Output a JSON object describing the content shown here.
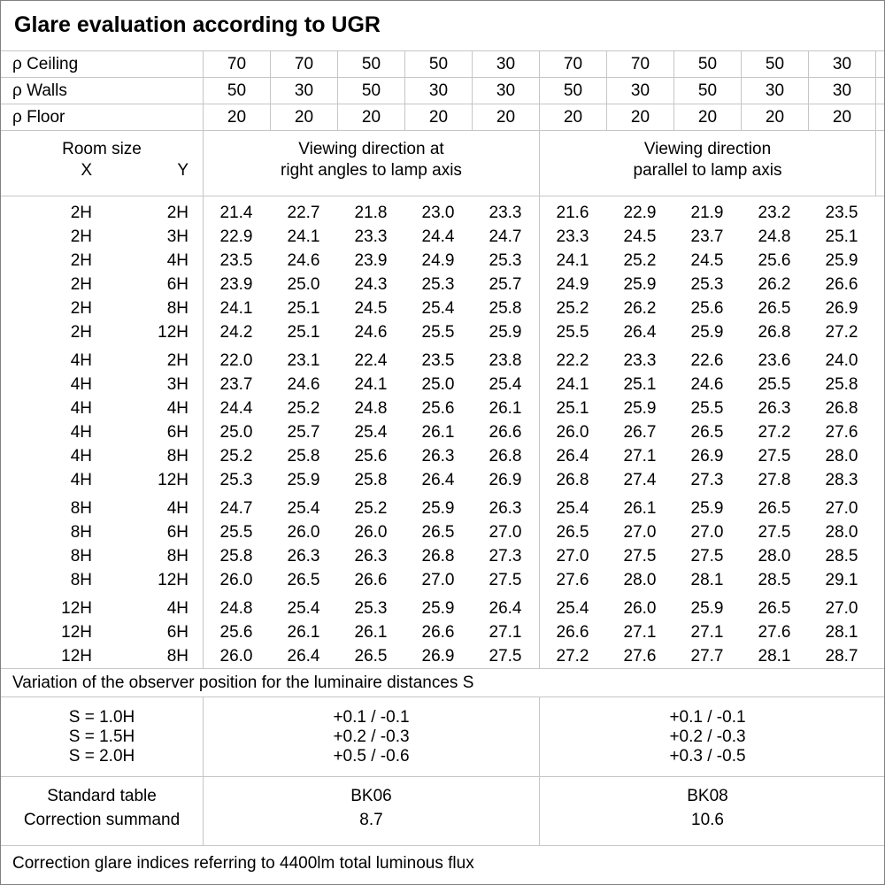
{
  "title": "Glare evaluation according to UGR",
  "colors": {
    "grid_line": "#c6c6c6",
    "outer_border": "#808080",
    "text": "#000000",
    "background": "#ffffff"
  },
  "reflectance": {
    "ceiling_label": "ρ Ceiling",
    "walls_label": "ρ Walls",
    "floor_label": "ρ Floor",
    "ceiling": [
      "70",
      "70",
      "50",
      "50",
      "30",
      "70",
      "70",
      "50",
      "50",
      "30"
    ],
    "walls": [
      "50",
      "30",
      "50",
      "30",
      "30",
      "50",
      "30",
      "50",
      "30",
      "30"
    ],
    "floor": [
      "20",
      "20",
      "20",
      "20",
      "20",
      "20",
      "20",
      "20",
      "20",
      "20"
    ]
  },
  "header": {
    "room_size_label": "Room size",
    "x_label": "X",
    "y_label": "Y",
    "left_block_title_1": "Viewing direction at",
    "left_block_title_2": "right angles to lamp axis",
    "right_block_title_1": "Viewing direction",
    "right_block_title_2": "parallel to lamp axis"
  },
  "ugr_rows": [
    {
      "x": "2H",
      "y": "2H",
      "right_angles": [
        "21.4",
        "22.7",
        "21.8",
        "23.0",
        "23.3"
      ],
      "parallel": [
        "21.6",
        "22.9",
        "21.9",
        "23.2",
        "23.5"
      ]
    },
    {
      "x": "2H",
      "y": "3H",
      "right_angles": [
        "22.9",
        "24.1",
        "23.3",
        "24.4",
        "24.7"
      ],
      "parallel": [
        "23.3",
        "24.5",
        "23.7",
        "24.8",
        "25.1"
      ]
    },
    {
      "x": "2H",
      "y": "4H",
      "right_angles": [
        "23.5",
        "24.6",
        "23.9",
        "24.9",
        "25.3"
      ],
      "parallel": [
        "24.1",
        "25.2",
        "24.5",
        "25.6",
        "25.9"
      ]
    },
    {
      "x": "2H",
      "y": "6H",
      "right_angles": [
        "23.9",
        "25.0",
        "24.3",
        "25.3",
        "25.7"
      ],
      "parallel": [
        "24.9",
        "25.9",
        "25.3",
        "26.2",
        "26.6"
      ]
    },
    {
      "x": "2H",
      "y": "8H",
      "right_angles": [
        "24.1",
        "25.1",
        "24.5",
        "25.4",
        "25.8"
      ],
      "parallel": [
        "25.2",
        "26.2",
        "25.6",
        "26.5",
        "26.9"
      ]
    },
    {
      "x": "2H",
      "y": "12H",
      "right_angles": [
        "24.2",
        "25.1",
        "24.6",
        "25.5",
        "25.9"
      ],
      "parallel": [
        "25.5",
        "26.4",
        "25.9",
        "26.8",
        "27.2"
      ]
    },
    {
      "x": "4H",
      "y": "2H",
      "gap_before": true,
      "right_angles": [
        "22.0",
        "23.1",
        "22.4",
        "23.5",
        "23.8"
      ],
      "parallel": [
        "22.2",
        "23.3",
        "22.6",
        "23.6",
        "24.0"
      ]
    },
    {
      "x": "4H",
      "y": "3H",
      "right_angles": [
        "23.7",
        "24.6",
        "24.1",
        "25.0",
        "25.4"
      ],
      "parallel": [
        "24.1",
        "25.1",
        "24.6",
        "25.5",
        "25.8"
      ]
    },
    {
      "x": "4H",
      "y": "4H",
      "right_angles": [
        "24.4",
        "25.2",
        "24.8",
        "25.6",
        "26.1"
      ],
      "parallel": [
        "25.1",
        "25.9",
        "25.5",
        "26.3",
        "26.8"
      ]
    },
    {
      "x": "4H",
      "y": "6H",
      "right_angles": [
        "25.0",
        "25.7",
        "25.4",
        "26.1",
        "26.6"
      ],
      "parallel": [
        "26.0",
        "26.7",
        "26.5",
        "27.2",
        "27.6"
      ]
    },
    {
      "x": "4H",
      "y": "8H",
      "right_angles": [
        "25.2",
        "25.8",
        "25.6",
        "26.3",
        "26.8"
      ],
      "parallel": [
        "26.4",
        "27.1",
        "26.9",
        "27.5",
        "28.0"
      ]
    },
    {
      "x": "4H",
      "y": "12H",
      "right_angles": [
        "25.3",
        "25.9",
        "25.8",
        "26.4",
        "26.9"
      ],
      "parallel": [
        "26.8",
        "27.4",
        "27.3",
        "27.8",
        "28.3"
      ]
    },
    {
      "x": "8H",
      "y": "4H",
      "gap_before": true,
      "right_angles": [
        "24.7",
        "25.4",
        "25.2",
        "25.9",
        "26.3"
      ],
      "parallel": [
        "25.4",
        "26.1",
        "25.9",
        "26.5",
        "27.0"
      ]
    },
    {
      "x": "8H",
      "y": "6H",
      "right_angles": [
        "25.5",
        "26.0",
        "26.0",
        "26.5",
        "27.0"
      ],
      "parallel": [
        "26.5",
        "27.0",
        "27.0",
        "27.5",
        "28.0"
      ]
    },
    {
      "x": "8H",
      "y": "8H",
      "right_angles": [
        "25.8",
        "26.3",
        "26.3",
        "26.8",
        "27.3"
      ],
      "parallel": [
        "27.0",
        "27.5",
        "27.5",
        "28.0",
        "28.5"
      ]
    },
    {
      "x": "8H",
      "y": "12H",
      "right_angles": [
        "26.0",
        "26.5",
        "26.6",
        "27.0",
        "27.5"
      ],
      "parallel": [
        "27.6",
        "28.0",
        "28.1",
        "28.5",
        "29.1"
      ]
    },
    {
      "x": "12H",
      "y": "4H",
      "gap_before": true,
      "right_angles": [
        "24.8",
        "25.4",
        "25.3",
        "25.9",
        "26.4"
      ],
      "parallel": [
        "25.4",
        "26.0",
        "25.9",
        "26.5",
        "27.0"
      ]
    },
    {
      "x": "12H",
      "y": "6H",
      "right_angles": [
        "25.6",
        "26.1",
        "26.1",
        "26.6",
        "27.1"
      ],
      "parallel": [
        "26.6",
        "27.1",
        "27.1",
        "27.6",
        "28.1"
      ]
    },
    {
      "x": "12H",
      "y": "8H",
      "right_angles": [
        "26.0",
        "26.4",
        "26.5",
        "26.9",
        "27.5"
      ],
      "parallel": [
        "27.2",
        "27.6",
        "27.7",
        "28.1",
        "28.7"
      ]
    }
  ],
  "variation": {
    "note": "Variation of the observer position for the luminaire distances S",
    "rows": [
      {
        "s": "S = 1.0H",
        "left": "+0.1 / -0.1",
        "right": "+0.1 / -0.1"
      },
      {
        "s": "S = 1.5H",
        "left": "+0.2 / -0.3",
        "right": "+0.2 / -0.3"
      },
      {
        "s": "S = 2.0H",
        "left": "+0.5 / -0.6",
        "right": "+0.3 / -0.5"
      }
    ]
  },
  "standard": {
    "rows": [
      {
        "label": "Standard table",
        "left": "BK06",
        "right": "BK08"
      },
      {
        "label": "Correction summand",
        "left": "8.7",
        "right": "10.6"
      }
    ]
  },
  "footer_note": "Correction glare indices referring to 4400lm total luminous flux"
}
